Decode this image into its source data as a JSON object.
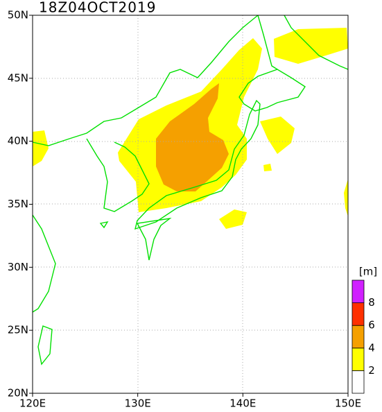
{
  "title": "18Z04OCT2019",
  "lon_labels": [
    "120E",
    "130E",
    "140E",
    "150E"
  ],
  "lat_labels": [
    "20N",
    "25N",
    "30N",
    "35N",
    "40N",
    "45N",
    "50N"
  ],
  "colorbar": {
    "unit": "[m]",
    "labels": [
      "2",
      "4",
      "6",
      "8"
    ],
    "colors": [
      "#ffffff",
      "#ffff00",
      "#f5a000",
      "#ff3000",
      "#d020ff"
    ]
  }
}
